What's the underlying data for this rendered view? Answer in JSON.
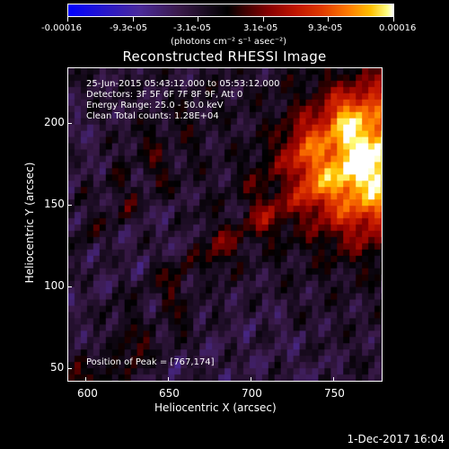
{
  "colorbar": {
    "ticks": [
      "-0.00016",
      "-9.3e-05",
      "-3.1e-05",
      "3.1e-05",
      "9.3e-05",
      "0.00016"
    ],
    "unit_label": "(photons cm⁻² s⁻¹ asec⁻²)"
  },
  "title": "Reconstructed RHESSI Image",
  "info": {
    "line1": "25-Jun-2015 05:43:12.000 to 05:53:12.000",
    "line2": "Detectors: 3F 5F 6F 7F 8F 9F, Att 0",
    "line3": "Energy Range: 25.0 - 50.0 keV",
    "line4": "Clean    Total counts: 1.28E+04"
  },
  "peak_text": "Position of Peak = [767,174]",
  "axes": {
    "x_title": "Heliocentric X (arcsec)",
    "y_title": "Heliocentric Y (arcsec)",
    "x_ticks": [
      "600",
      "650",
      "700",
      "750"
    ],
    "y_ticks": [
      "200",
      "150",
      "100",
      "50"
    ]
  },
  "date_stamp": "1-Dec-2017 16:04",
  "colors": {
    "background": "#000000",
    "foreground": "#ffffff"
  }
}
